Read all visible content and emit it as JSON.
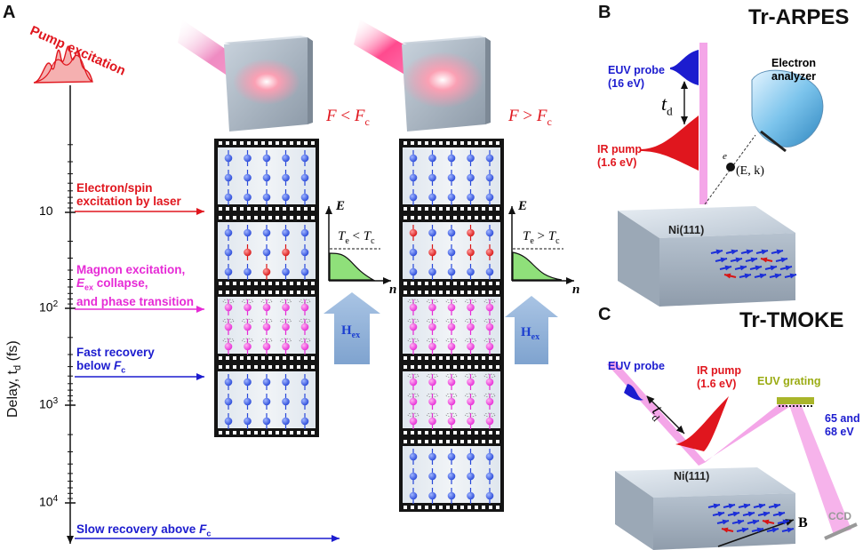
{
  "panel_a": {
    "letter": "A",
    "pump_excitation": "Pump excitation",
    "axis_label": "Delay, t",
    "axis_label_sub": "d",
    "axis_unit": "(fs)",
    "ticks": [
      {
        "base": "10",
        "exp": ""
      },
      {
        "base": "10",
        "exp": "2"
      },
      {
        "base": "10",
        "exp": "3"
      },
      {
        "base": "10",
        "exp": "4"
      }
    ],
    "annotations": {
      "electron_line1": "Electron/spin",
      "electron_line2": "excitation by laser",
      "magnon_line1": "Magnon excitation,",
      "magnon_E": "E",
      "magnon_E_sub": "ex",
      "magnon_line2_rest": " collapse,",
      "magnon_line3": "and phase transition",
      "fast_line1": "Fast recovery",
      "fast_line2": "below ",
      "fast_F": "F",
      "fast_F_sub": "c",
      "slow_text": "Slow recovery above ",
      "slow_F": "F",
      "slow_F_sub": "c"
    },
    "fluence_left": {
      "F": "F",
      "op": " < ",
      "Fc": "F",
      "sub": "c"
    },
    "fluence_right": {
      "F": "F",
      "op": " > ",
      "Fc": "F",
      "sub": "c"
    },
    "dist_left": {
      "E": "E",
      "n": "n",
      "Te": "T",
      "Te_sub": "e",
      "op": " < ",
      "Tc": "T",
      "Tc_sub": "c"
    },
    "dist_right": {
      "E": "E",
      "n": "n",
      "Te": "T",
      "Te_sub": "e",
      "op": " > ",
      "Tc": "T",
      "Tc_sub": "c"
    },
    "hex_label": "H",
    "hex_sub": "ex"
  },
  "panel_b": {
    "letter": "B",
    "title": "Tr-ARPES",
    "euv_probe_line1": "EUV probe",
    "euv_probe_line2": "(16 eV)",
    "ir_pump_line1": "IR pump",
    "ir_pump_line2": "(1.6 eV)",
    "td": "t",
    "td_sub": "d",
    "electron_line1": "Electron",
    "electron_line2": "analyzer",
    "electron_symbol": "e",
    "ek": "(E, k)",
    "sample": "Ni(111)"
  },
  "panel_c": {
    "letter": "C",
    "title": "Tr-TMOKE",
    "euv_probe": "EUV probe",
    "ir_pump_line1": "IR pump",
    "ir_pump_line2": "(1.6 eV)",
    "euv_grating": "EUV grating",
    "energies_line1": "65 and",
    "energies_line2": "68 eV",
    "ccd": "CCD",
    "td": "t",
    "td_sub": "d",
    "sample": "Ni(111)",
    "field": "B"
  },
  "colors": {
    "red": "#e0161e",
    "magenta": "#e62ad6",
    "blue": "#1c1ccf",
    "pink_beam": "#f4a6e8",
    "hex_arrow": "#8fb3da",
    "green_fill": "#8fe07a"
  }
}
